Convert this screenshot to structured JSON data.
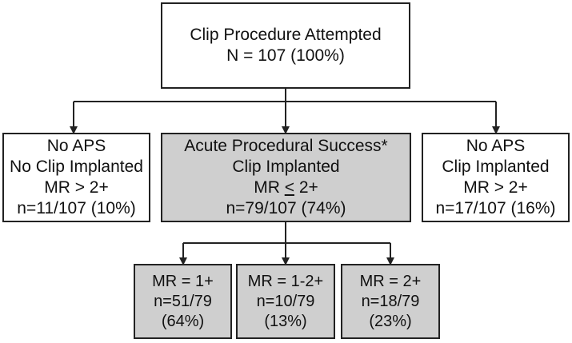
{
  "flowchart": {
    "root": {
      "line1": "Clip Procedure Attempted",
      "line2": "N = 107 (100%)"
    },
    "left": {
      "line1": "No APS",
      "line2": "No Clip Implanted",
      "line3": "MR > 2+",
      "line4": "n=11/107 (10%)"
    },
    "center": {
      "line1": "Acute Procedural Success*",
      "line2": "Clip Implanted",
      "line3_prefix": "MR ",
      "line3_le": "<",
      "line3_suffix": " 2+",
      "line4": "n=79/107 (74%)"
    },
    "right": {
      "line1": "No APS",
      "line2": "Clip Implanted",
      "line3": "MR > 2+",
      "line4": "n=17/107 (16%)"
    },
    "outcomes": [
      {
        "line1": "MR = 1+",
        "line2": "n=51/79",
        "line3": "(64%)"
      },
      {
        "line1": "MR = 1-2+",
        "line2": "n=10/79",
        "line3": "(13%)"
      },
      {
        "line1": "MR = 2+",
        "line2": "n=18/79",
        "line3": "(23%)"
      }
    ]
  },
  "colors": {
    "line": "#222222",
    "gray_fill": "#cfcfcf",
    "white_fill": "#ffffff"
  }
}
